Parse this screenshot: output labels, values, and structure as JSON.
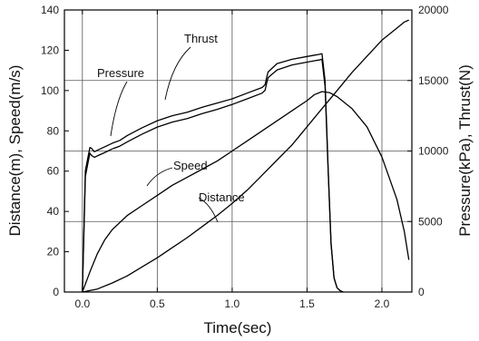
{
  "chart_data": {
    "type": "line",
    "xlabel": "Time(sec)",
    "ylabel_left": "Distance(m), Speed(m/s)",
    "ylabel_right": "Pressure(kPa), Thrust(N)",
    "xlim": [
      -0.12,
      2.2
    ],
    "ylim_left": [
      0,
      140
    ],
    "ylim_right": [
      0,
      20000
    ],
    "x_ticks": [
      0.0,
      0.5,
      1.0,
      1.5,
      2.0
    ],
    "x_tick_labels": [
      "0.0",
      "0.5",
      "1.0",
      "1.5",
      "2.0"
    ],
    "y_left_ticks": [
      0,
      20,
      40,
      60,
      80,
      100,
      120,
      140
    ],
    "y_left_tick_labels": [
      "0",
      "20",
      "40",
      "60",
      "80",
      "100",
      "120",
      "140"
    ],
    "y_right_ticks": [
      0,
      5000,
      10000,
      15000,
      20000
    ],
    "y_right_tick_labels": [
      "0",
      "5000",
      "10000",
      "15000",
      "20000"
    ],
    "grid": {
      "x": [
        0.0,
        0.5,
        1.0,
        1.5,
        2.0
      ],
      "y_left": [
        35,
        70,
        105
      ]
    },
    "series": [
      {
        "name": "Thrust",
        "axis": "right",
        "x": [
          0.0,
          0.02,
          0.04,
          0.05,
          0.06,
          0.08,
          0.1,
          0.15,
          0.2,
          0.25,
          0.3,
          0.4,
          0.5,
          0.6,
          0.7,
          0.8,
          0.9,
          1.0,
          1.1,
          1.2,
          1.22,
          1.23,
          1.24,
          1.3,
          1.4,
          1.5,
          1.55,
          1.58,
          1.6,
          1.62,
          1.64,
          1.66,
          1.68,
          1.7,
          1.72,
          1.74
        ],
        "values": [
          0,
          8600,
          9700,
          10250,
          10200,
          9950,
          10050,
          10300,
          10550,
          10750,
          11100,
          11650,
          12150,
          12500,
          12750,
          13100,
          13400,
          13700,
          14100,
          14500,
          14700,
          15200,
          15600,
          16200,
          16500,
          16700,
          16800,
          16850,
          16900,
          15000,
          9000,
          3500,
          1000,
          300,
          100,
          0
        ]
      },
      {
        "name": "Pressure",
        "axis": "right",
        "x": [
          0.0,
          0.02,
          0.04,
          0.05,
          0.06,
          0.08,
          0.1,
          0.15,
          0.2,
          0.25,
          0.3,
          0.4,
          0.5,
          0.6,
          0.7,
          0.8,
          0.9,
          1.0,
          1.1,
          1.2,
          1.22,
          1.23,
          1.24,
          1.3,
          1.4,
          1.5,
          1.55,
          1.58,
          1.6,
          1.62,
          1.64,
          1.66,
          1.68,
          1.7,
          1.72,
          1.74
        ],
        "values": [
          0,
          8200,
          9300,
          9850,
          9700,
          9550,
          9650,
          9900,
          10150,
          10350,
          10650,
          11200,
          11700,
          12050,
          12300,
          12650,
          12950,
          13300,
          13700,
          14100,
          14300,
          14800,
          15200,
          15750,
          16100,
          16300,
          16400,
          16450,
          16500,
          14600,
          8800,
          3400,
          1000,
          300,
          100,
          0
        ]
      },
      {
        "name": "Speed",
        "axis": "left",
        "x": [
          0.0,
          0.05,
          0.1,
          0.15,
          0.2,
          0.3,
          0.4,
          0.5,
          0.6,
          0.7,
          0.8,
          0.9,
          1.0,
          1.1,
          1.2,
          1.3,
          1.4,
          1.5,
          1.55,
          1.6,
          1.65,
          1.7,
          1.8,
          1.9,
          2.0,
          2.1,
          2.15,
          2.18
        ],
        "values": [
          0,
          10,
          19,
          26,
          31,
          38,
          43,
          48,
          53,
          57,
          61,
          65,
          70,
          75,
          80,
          85,
          90,
          95,
          98,
          99.5,
          99,
          97,
          91,
          82,
          67,
          46,
          30,
          16
        ]
      },
      {
        "name": "Distance",
        "axis": "left",
        "x": [
          0.0,
          0.1,
          0.2,
          0.3,
          0.4,
          0.5,
          0.6,
          0.7,
          0.8,
          0.9,
          1.0,
          1.1,
          1.2,
          1.3,
          1.4,
          1.5,
          1.6,
          1.7,
          1.8,
          1.9,
          2.0,
          2.1,
          2.15,
          2.18
        ],
        "values": [
          0,
          1.5,
          4.5,
          8,
          12.5,
          17,
          22,
          27,
          32.5,
          38,
          44,
          50.5,
          58,
          65.5,
          73,
          82,
          91,
          100,
          109,
          117,
          125,
          131,
          134,
          135
        ]
      }
    ],
    "annotations": [
      "Thrust",
      "Pressure",
      "Speed",
      "Distance"
    ]
  }
}
